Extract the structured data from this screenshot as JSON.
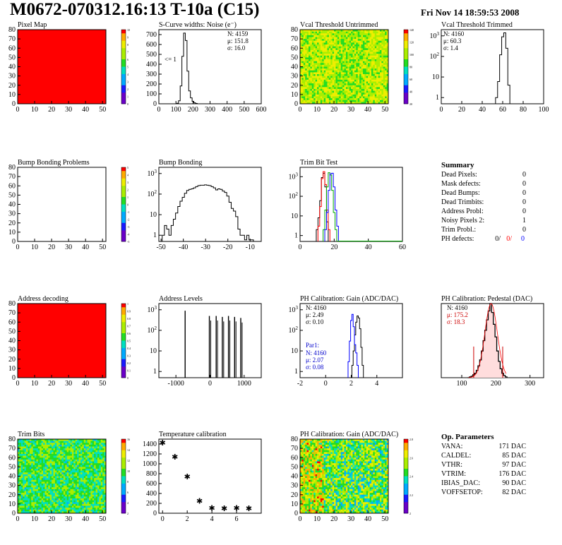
{
  "header": {
    "title": "M0672-070312.16:13 T-10a (C15)",
    "date": "Fri Nov 14 18:59:53 2008"
  },
  "colors": {
    "red": "#ff0000",
    "blue": "#0000cc",
    "green": "#00bb00",
    "black": "#000000"
  },
  "chart_data": [
    {
      "id": "pixel-map",
      "type": "heatmap",
      "title": "Pixel Map",
      "xlim": [
        0,
        52
      ],
      "ylim": [
        0,
        80
      ],
      "xticks": [
        0,
        10,
        20,
        30,
        40,
        50
      ],
      "yticks": [
        0,
        10,
        20,
        30,
        40,
        50,
        60,
        70,
        80
      ],
      "fill": "uniform",
      "value": 10,
      "zlim": [
        0,
        10
      ],
      "palette_ticks": [
        "10",
        "9",
        "8",
        "7",
        "6",
        "5",
        "4",
        "3",
        "2",
        "1",
        "0"
      ]
    },
    {
      "id": "scurve-noise",
      "type": "histogram",
      "title": "S-Curve widths: Noise (e⁻)",
      "xlim": [
        0,
        600
      ],
      "ylim": [
        0,
        750
      ],
      "xticks": [
        0,
        100,
        200,
        300,
        400,
        500,
        600
      ],
      "yticks": [
        0,
        100,
        200,
        300,
        400,
        500,
        600,
        700
      ],
      "stats": [
        "N: 4159",
        "μ: 151.8",
        "σ: 16.0"
      ],
      "annotation": "<= 1",
      "x": [
        100,
        110,
        120,
        130,
        140,
        150,
        160,
        170,
        180,
        190,
        200,
        210,
        220,
        230
      ],
      "values": [
        0,
        5,
        30,
        180,
        480,
        715,
        640,
        330,
        130,
        60,
        25,
        10,
        4,
        0
      ]
    },
    {
      "id": "vcal-untrimmed",
      "type": "heatmap",
      "title": "Vcal Threshold Untrimmed",
      "xlim": [
        0,
        52
      ],
      "ylim": [
        0,
        80
      ],
      "xticks": [
        0,
        10,
        20,
        30,
        40,
        50
      ],
      "yticks": [
        0,
        10,
        20,
        30,
        40,
        50,
        60,
        70,
        80
      ],
      "fill": "noisy-yellow",
      "palette_ticks": [
        "140",
        "120",
        "100",
        "80",
        "60",
        "40",
        "20"
      ]
    },
    {
      "id": "vcal-trimmed",
      "type": "histogram",
      "title": "Vcal Threshold Trimmed",
      "log": true,
      "xlim": [
        0,
        100
      ],
      "ylim": [
        0.5,
        2000
      ],
      "xticks": [
        0,
        20,
        40,
        60,
        80,
        100
      ],
      "yticks": [
        1,
        10,
        100,
        1000
      ],
      "stats": [
        "N: 4160",
        "μ: 60.3",
        "σ: 1.4"
      ],
      "x": [
        54,
        56,
        58,
        60,
        62,
        64,
        66
      ],
      "values": [
        1,
        6,
        120,
        900,
        1400,
        250,
        4
      ]
    },
    {
      "id": "bump-problems",
      "type": "heatmap",
      "title": "Bump Bonding Problems",
      "xlim": [
        0,
        52
      ],
      "ylim": [
        0,
        80
      ],
      "xticks": [
        0,
        10,
        20,
        30,
        40,
        50
      ],
      "yticks": [
        0,
        10,
        20,
        30,
        40,
        50,
        60,
        70,
        80
      ],
      "fill": "empty",
      "palette_ticks": [
        "5",
        "4",
        "3",
        "2",
        "1",
        "0",
        "-1",
        "-2",
        "-3",
        "-4",
        "-5"
      ]
    },
    {
      "id": "bump-bonding",
      "type": "histogram",
      "title": "Bump Bonding",
      "log": true,
      "xlim": [
        -51,
        -5
      ],
      "ylim": [
        0.5,
        2000
      ],
      "xticks": [
        -50,
        -40,
        -30,
        -20,
        -10
      ],
      "yticks": [
        1,
        10,
        100,
        1000
      ],
      "x": [
        -49,
        -48,
        -47,
        -46,
        -45,
        -44,
        -43,
        -42,
        -41,
        -40,
        -39,
        -38,
        -37,
        -36,
        -35,
        -34,
        -33,
        -32,
        -31,
        -30,
        -29,
        -28,
        -27,
        -26,
        -25,
        -24,
        -23,
        -22,
        -21,
        -20,
        -19,
        -18,
        -17,
        -16,
        -15,
        -14,
        -13,
        -12,
        -11,
        -10,
        -9
      ],
      "values": [
        1,
        3,
        2,
        1,
        3,
        6,
        12,
        25,
        45,
        70,
        110,
        150,
        170,
        180,
        200,
        230,
        260,
        270,
        270,
        280,
        270,
        260,
        230,
        200,
        160,
        180,
        170,
        140,
        120,
        80,
        40,
        20,
        15,
        8,
        2,
        1,
        1,
        0.6,
        1,
        0.6,
        0.6
      ]
    },
    {
      "id": "trim-bit-test",
      "type": "histogram",
      "title": "Trim Bit Test",
      "log": true,
      "xlim": [
        0,
        60
      ],
      "ylim": [
        0.5,
        3000
      ],
      "xticks": [
        0,
        20,
        40,
        60
      ],
      "yticks": [
        1,
        10,
        100,
        1000
      ],
      "series": [
        {
          "color": "#000000",
          "x": [
            10,
            11,
            12,
            13,
            14,
            15,
            16
          ],
          "values": [
            2,
            8,
            60,
            900,
            1500,
            300,
            5
          ]
        },
        {
          "color": "#ff0000",
          "x": [
            11,
            12,
            13,
            14,
            15,
            16,
            17
          ],
          "values": [
            3,
            30,
            800,
            1800,
            400,
            20,
            2
          ]
        },
        {
          "color": "#00aa00",
          "x": [
            14,
            15,
            16,
            17,
            18,
            19,
            20,
            21
          ],
          "values": [
            2,
            20,
            300,
            1600,
            1200,
            200,
            15,
            2
          ]
        },
        {
          "color": "#0000ff",
          "x": [
            15,
            16,
            17,
            18,
            19,
            20,
            21,
            22
          ],
          "values": [
            2,
            15,
            200,
            1400,
            1500,
            300,
            20,
            3
          ]
        }
      ]
    },
    {
      "id": "summary",
      "type": "table",
      "title": "Summary",
      "rows": [
        [
          "Dead Pixels:",
          "0"
        ],
        [
          "Mask defects:",
          "0"
        ],
        [
          "Dead Bumps:",
          "0"
        ],
        [
          "Dead Trimbits:",
          "0"
        ],
        [
          "Address Probl:",
          "0"
        ],
        [
          "Noisy Pixels 2:",
          "1"
        ],
        [
          "Trim Probl.:",
          "0"
        ]
      ],
      "ph_label": "PH defects:",
      "ph_values": [
        "0/",
        "0/",
        "0"
      ]
    },
    {
      "id": "address-decoding",
      "type": "heatmap",
      "title": "Address decoding",
      "xlim": [
        0,
        52
      ],
      "ylim": [
        0,
        80
      ],
      "xticks": [
        0,
        10,
        20,
        30,
        40,
        50
      ],
      "yticks": [
        0,
        10,
        20,
        30,
        40,
        50,
        60,
        70,
        80
      ],
      "fill": "uniform",
      "value": 1,
      "zlim": [
        0,
        1
      ],
      "palette_ticks": [
        "1",
        "0.9",
        "0.8",
        "0.7",
        "0.6",
        "0.5",
        "0.4",
        "0.3",
        "0.2",
        "0.1",
        "0"
      ]
    },
    {
      "id": "address-levels",
      "type": "histogram",
      "title": "Address Levels",
      "log": true,
      "xlim": [
        -1500,
        1500
      ],
      "ylim": [
        0.5,
        2000
      ],
      "xticks": [
        -1000,
        0,
        1000
      ],
      "yticks": [
        1,
        10,
        100,
        1000
      ],
      "peaks": [
        -730,
        -20,
        180,
        360,
        540,
        720,
        900
      ],
      "peak_heights": [
        900,
        500,
        500,
        450,
        500,
        450,
        400
      ]
    },
    {
      "id": "ph-gain",
      "type": "histogram",
      "title": "PH Calibration: Gain (ADC/DAC)",
      "log": true,
      "xlim": [
        -2,
        6
      ],
      "ylim": [
        0.5,
        2000
      ],
      "xticks": [
        -2,
        0,
        2,
        4
      ],
      "yticks": [
        1,
        10,
        100,
        1000
      ],
      "stats": [
        "N: 4160",
        "μ: 2.49",
        "σ: 0.10"
      ],
      "stats2_title": "Par1:",
      "stats2": [
        "N: 4160",
        "μ: 2.07",
        "σ: 0.08"
      ],
      "series": [
        {
          "color": "#000000",
          "x": [
            2.1,
            2.2,
            2.3,
            2.4,
            2.5,
            2.6,
            2.7,
            2.8,
            2.9
          ],
          "values": [
            2,
            10,
            60,
            250,
            500,
            400,
            120,
            15,
            2
          ]
        },
        {
          "color": "#0000ff",
          "x": [
            1.8,
            1.9,
            2.0,
            2.1,
            2.2,
            2.3,
            2.4,
            2.5
          ],
          "values": [
            3,
            30,
            300,
            600,
            150,
            20,
            8,
            2
          ]
        }
      ]
    },
    {
      "id": "ph-pedestal",
      "type": "histogram",
      "title": "PH Calibration: Pedestal (DAC)",
      "xlim": [
        40,
        340
      ],
      "ylim": [
        0,
        100
      ],
      "xticks": [
        100,
        200,
        300
      ],
      "stats": [
        "N: 4160",
        "μ: 175.2",
        "σ: 18.3"
      ],
      "x": [
        120,
        125,
        130,
        135,
        140,
        145,
        150,
        155,
        160,
        165,
        170,
        175,
        180,
        185,
        190,
        195,
        200,
        205,
        210,
        215,
        220,
        225,
        230
      ],
      "values": [
        0,
        1,
        2,
        4,
        6,
        10,
        16,
        24,
        36,
        50,
        64,
        78,
        90,
        100,
        88,
        72,
        55,
        36,
        22,
        12,
        6,
        3,
        1
      ]
    },
    {
      "id": "trim-bits",
      "type": "heatmap",
      "title": "Trim Bits",
      "xlim": [
        0,
        52
      ],
      "ylim": [
        0,
        80
      ],
      "xticks": [
        0,
        10,
        20,
        30,
        40,
        50
      ],
      "yticks": [
        0,
        10,
        20,
        30,
        40,
        50,
        60,
        70,
        80
      ],
      "fill": "noisy-green",
      "palette_ticks": [
        "16",
        "14",
        "12",
        "10",
        "8",
        "6",
        "4",
        "2"
      ]
    },
    {
      "id": "temperature",
      "type": "scatter",
      "title": "Temperature calibration",
      "xlim": [
        -0.3,
        8
      ],
      "ylim": [
        0,
        1500
      ],
      "xticks": [
        0,
        2,
        4,
        6
      ],
      "yticks": [
        0,
        200,
        400,
        600,
        800,
        1000,
        1200,
        1400
      ],
      "x": [
        0,
        1,
        2,
        3,
        4,
        5,
        6,
        7
      ],
      "values": [
        1430,
        1140,
        740,
        250,
        110,
        100,
        105,
        100
      ]
    },
    {
      "id": "ph-gain-map",
      "type": "heatmap",
      "title": "PH Calibration: Gain (ADC/DAC)",
      "xlim": [
        0,
        52
      ],
      "ylim": [
        0,
        80
      ],
      "xticks": [
        0,
        10,
        20,
        30,
        40,
        50
      ],
      "yticks": [
        0,
        10,
        20,
        30,
        40,
        50,
        60,
        70,
        80
      ],
      "fill": "noisy-mixed",
      "palette_ticks": [
        "2.8",
        "2.6",
        "2.4",
        "2.2",
        "2"
      ]
    },
    {
      "id": "op-params",
      "type": "table",
      "title": "Op. Parameters",
      "rows": [
        [
          "VANA:",
          "171 DAC"
        ],
        [
          "CALDEL:",
          "85 DAC"
        ],
        [
          "VTHR:",
          "97 DAC"
        ],
        [
          "VTRIM:",
          "176 DAC"
        ],
        [
          "IBIAS_DAC:",
          "90 DAC"
        ],
        [
          "VOFFSETOP:",
          "82 DAC"
        ]
      ]
    }
  ]
}
